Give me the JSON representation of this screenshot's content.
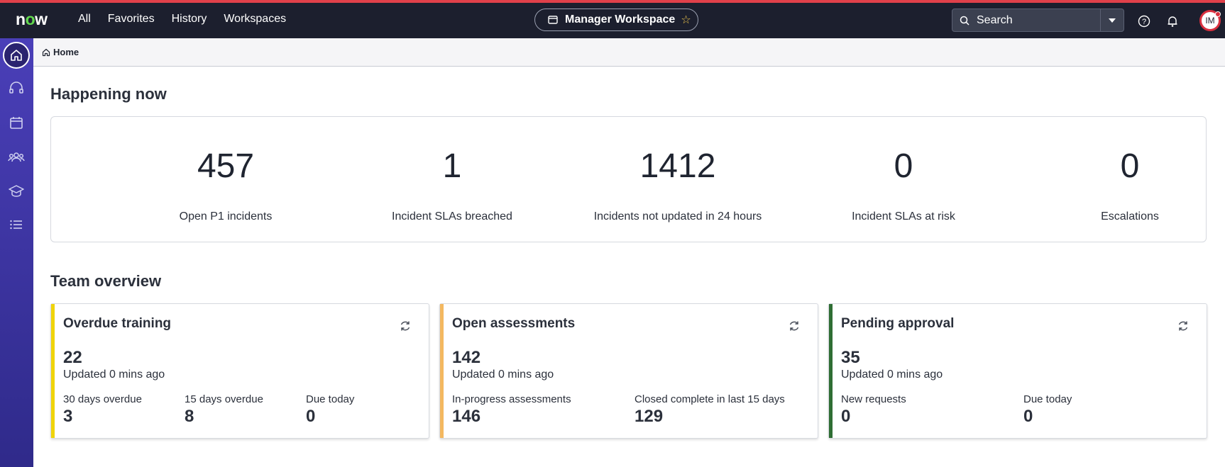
{
  "topbar": {
    "logo_a": "n",
    "logo_o": "o",
    "logo_b": "w",
    "nav": [
      "All",
      "Favorites",
      "History",
      "Workspaces"
    ],
    "workspace": "Manager Workspace",
    "search_placeholder": "Search",
    "avatar_initials": "IM"
  },
  "breadcrumb": {
    "home": "Home"
  },
  "happening": {
    "title": "Happening now",
    "metrics": [
      {
        "value": "457",
        "label": "Open P1 incidents"
      },
      {
        "value": "1",
        "label": "Incident SLAs breached"
      },
      {
        "value": "1412",
        "label": "Incidents not updated in 24 hours"
      },
      {
        "value": "0",
        "label": "Incident SLAs at risk"
      },
      {
        "value": "0",
        "label": "Escalations"
      }
    ]
  },
  "team": {
    "title": "Team overview",
    "cards": [
      {
        "title": "Overdue training",
        "count": "22",
        "updated": "Updated 0 mins ago",
        "accent": "#f0d40a",
        "subs": [
          {
            "label": "30 days overdue",
            "value": "3"
          },
          {
            "label": "15 days overdue",
            "value": "8"
          },
          {
            "label": "Due today",
            "value": "0"
          }
        ]
      },
      {
        "title": "Open assessments",
        "count": "142",
        "updated": "Updated 0 mins ago",
        "accent": "#f4b860",
        "subs": [
          {
            "label": "In-progress assessments",
            "value": "146"
          },
          {
            "label": "Closed complete in last 15 days",
            "value": "129"
          }
        ]
      },
      {
        "title": "Pending approval",
        "count": "35",
        "updated": "Updated 0 mins ago",
        "accent": "#2f6e34",
        "subs": [
          {
            "label": "New requests",
            "value": "0"
          },
          {
            "label": "Due today",
            "value": "0"
          }
        ]
      }
    ]
  },
  "colors": {
    "topbar": "#1c1f2e",
    "top_accent": "#e0404a",
    "sidebar": "#4a3fb8"
  },
  "icons": [
    "home-icon",
    "headset-icon",
    "calendar-icon",
    "team-icon",
    "graduation-cap-icon",
    "list-icon",
    "search-icon",
    "help-icon",
    "bell-icon",
    "refresh-icon",
    "star-icon",
    "workspace-icon"
  ]
}
